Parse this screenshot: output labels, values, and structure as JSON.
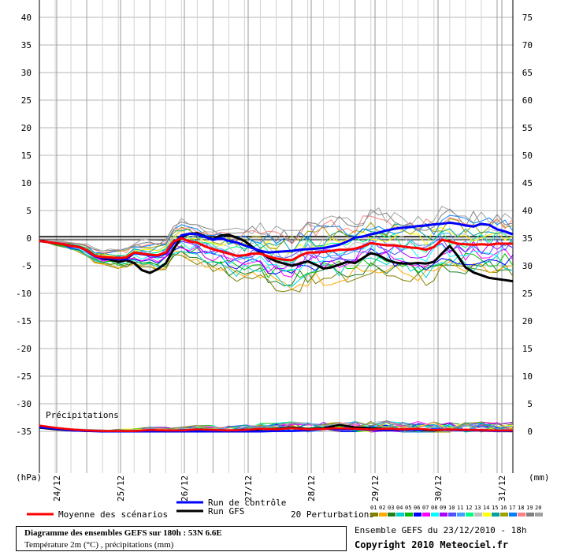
{
  "chart_data": {
    "type": "line",
    "x_labels": [
      "24/12",
      "25/12",
      "26/12",
      "27/12",
      "28/12",
      "29/12",
      "30/12",
      "31/12"
    ],
    "left_axis": {
      "unit": "(hPa)",
      "ticks": [
        40,
        35,
        30,
        25,
        20,
        15,
        10,
        5,
        0,
        -5,
        -10,
        -15,
        -20,
        -25,
        -30,
        -35
      ],
      "ylim": [
        -41.5,
        42
      ]
    },
    "right_axis": {
      "unit": "(mm)",
      "ticks": [
        75,
        70,
        65,
        60,
        55,
        50,
        45,
        40,
        35,
        30,
        25,
        20,
        15,
        10,
        5,
        0
      ]
    },
    "grid": true,
    "precip_label": "Précipitations",
    "temperature": {
      "x": [
        0,
        3,
        6,
        9,
        12,
        15,
        18,
        21,
        24,
        27,
        30,
        33,
        36,
        39,
        42,
        45,
        48,
        51,
        54,
        57,
        60,
        63,
        66,
        69,
        72,
        75,
        78,
        81,
        84,
        87,
        90,
        93,
        96,
        99,
        102,
        105,
        108,
        111,
        114,
        117,
        120,
        123,
        126,
        129,
        132,
        135,
        138,
        141,
        144,
        147,
        150,
        153,
        156,
        159,
        162,
        165,
        168,
        171,
        174,
        177,
        180
      ],
      "series": [
        {
          "name": "Moyenne des scénarios",
          "values": [
            -0.5,
            -0.7,
            -0.9,
            -1.1,
            -1.4,
            -1.6,
            -2.2,
            -3.2,
            -3.4,
            -3.5,
            -3.6,
            -3.5,
            -2.6,
            -2.8,
            -3,
            -3.1,
            -2.6,
            -0.6,
            0,
            -0.6,
            -0.8,
            -1.5,
            -2,
            -2.4,
            -2.8,
            -3.2,
            -3.1,
            -2.8,
            -2.8,
            -3.3,
            -3.7,
            -3.9,
            -4,
            -3.2,
            -2.6,
            -2.6,
            -2.5,
            -2.3,
            -2.1,
            -2.1,
            -1.9,
            -1.5,
            -0.9,
            -1.1,
            -1.3,
            -1.3,
            -1.5,
            -1.7,
            -1.8,
            -2.1,
            -1.6,
            -0.3,
            -0.6,
            -1,
            -1.1,
            -1.2,
            -1.1,
            -1.2,
            -1,
            -1,
            -1
          ]
        },
        {
          "name": "Run de contrôle",
          "values": [
            -0.5,
            -0.7,
            -0.9,
            -1.1,
            -1.4,
            -1.6,
            -2.2,
            -3.2,
            -3.5,
            -3.7,
            -3.8,
            -3.8,
            -2.7,
            -2.9,
            -3.1,
            -3.2,
            -2.8,
            -1,
            0.5,
            0.8,
            0.7,
            0.2,
            -0.3,
            0,
            -0.5,
            -0.8,
            -1.3,
            -1.8,
            -2.3,
            -2.6,
            -2.5,
            -2.4,
            -2.3,
            -2.1,
            -2,
            -1.9,
            -1.8,
            -1.5,
            -1.2,
            -0.6,
            0.1,
            0.3,
            0.7,
            1,
            1.4,
            1.7,
            1.9,
            2,
            2.2,
            2.3,
            2.5,
            2.6,
            2.8,
            2.6,
            2.3,
            2.1,
            2.6,
            2.4,
            1.6,
            1.2,
            0.7
          ]
        },
        {
          "name": "Run GFS",
          "values": [
            -0.5,
            -0.7,
            -0.9,
            -1.1,
            -1.4,
            -1.6,
            -2.2,
            -3.2,
            -3.6,
            -3.9,
            -4.3,
            -4,
            -4.5,
            -5.8,
            -6.3,
            -5.6,
            -4.6,
            -2,
            0.2,
            0.8,
            0.9,
            0.3,
            -0.2,
            0.5,
            0.6,
            0.1,
            -0.5,
            -1.6,
            -2.6,
            -3.5,
            -4.2,
            -4.6,
            -5,
            -4.6,
            -4.2,
            -4.8,
            -5.5,
            -5.3,
            -4.8,
            -4.3,
            -4.5,
            -3.6,
            -2.7,
            -3.1,
            -3.9,
            -4.4,
            -4.6,
            -4.6,
            -4.5,
            -4.6,
            -4.3,
            -2.8,
            -1.4,
            -3.2,
            -5.3,
            -6.2,
            -6.7,
            -7.2,
            -7.4,
            -7.6,
            -7.8
          ]
        }
      ]
    },
    "precipitation_mm": {
      "x": [
        0,
        6,
        12,
        18,
        24,
        30,
        36,
        42,
        48,
        54,
        60,
        66,
        72,
        78,
        84,
        90,
        96,
        102,
        108,
        114,
        120,
        126,
        132,
        138,
        144,
        150,
        156,
        162,
        168,
        174,
        180
      ],
      "series": [
        {
          "name": "Moyenne des scénarios",
          "values": [
            1.2,
            0.8,
            0.5,
            0.3,
            0.2,
            0.2,
            0.2,
            0.4,
            0.3,
            0.3,
            0.5,
            0.4,
            0.3,
            0.4,
            0.6,
            0.5,
            0.7,
            0.5,
            0.6,
            0.7,
            0.6,
            0.5,
            0.6,
            0.5,
            0.6,
            0.4,
            0.5,
            0.4,
            0.4,
            0.3,
            0.3
          ]
        },
        {
          "name": "Run de contrôle",
          "values": [
            0.9,
            0.6,
            0.3,
            0.2,
            0.1,
            0.1,
            0.1,
            0.1,
            0.1,
            0.1,
            0.1,
            0.1,
            0.1,
            0.1,
            0.1,
            0.2,
            0.2,
            0.3,
            0.6,
            0.5,
            0.5,
            0.4,
            0.3,
            0.4,
            0.4,
            0.5,
            0.4,
            0.3,
            0.3,
            0.2,
            0.2
          ]
        },
        {
          "name": "Run GFS",
          "values": [
            0.8,
            0.5,
            0.3,
            0.2,
            0.2,
            0.2,
            0.2,
            0.3,
            0.2,
            0.3,
            0.4,
            0.3,
            0.3,
            0.4,
            0.5,
            0.6,
            0.8,
            0.6,
            0.7,
            1.3,
            0.9,
            0.7,
            0.6,
            0.5,
            0.4,
            0.3,
            0.5,
            0.3,
            0.3,
            0.3,
            0.2
          ]
        }
      ]
    },
    "legend": {
      "mean": "Moyenne des scénarios",
      "control": "Run de contrôle",
      "gfs": "Run GFS",
      "perturbations": "20 Perturbations",
      "member_numbers": [
        "01",
        "02",
        "03",
        "04",
        "05",
        "06",
        "07",
        "08",
        "09",
        "10",
        "11",
        "12",
        "13",
        "14",
        "15",
        "16",
        "17",
        "18",
        "19",
        "20"
      ],
      "member_colors": [
        "#7f7f00",
        "#ffaa00",
        "#208020",
        "#00d0d0",
        "#00c000",
        "#0000ff",
        "#ff00ff",
        "#00ffff",
        "#aa00ff",
        "#5050ff",
        "#40a0ff",
        "#00ff80",
        "#c0c0c0",
        "#ffff00",
        "#00a0a0",
        "#a0a000",
        "#0080ff",
        "#ff8080",
        "#808080",
        "#a0a0a0"
      ],
      "mean_color": "#ff0000",
      "control_color": "#0000ff",
      "gfs_color": "#000000"
    }
  },
  "title": {
    "line1": "Diagramme des ensembles GEFS sur 180h : 53N 6.6E",
    "line2": "Température 2m (°C) , précipitations (mm)"
  },
  "ensemble_info": "Ensemble GEFS du 23/12/2010 - 18h",
  "copyright": "Copyright 2010 Meteociel.fr"
}
